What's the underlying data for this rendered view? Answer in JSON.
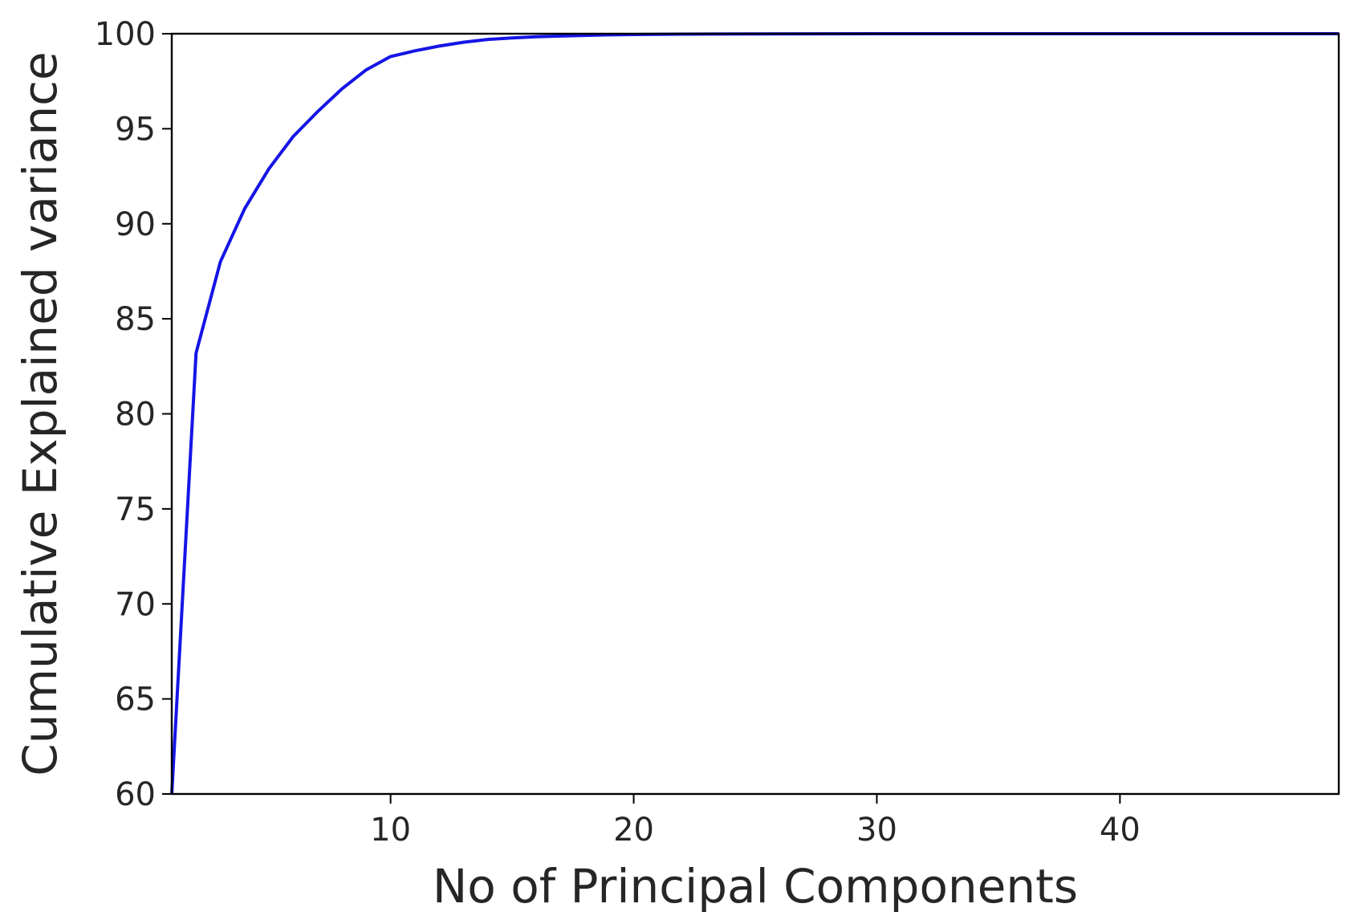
{
  "chart_data": {
    "type": "line",
    "title": "",
    "xlabel": "No of Principal Components",
    "ylabel": "Cumulative Explained variance",
    "xlim": [
      1,
      49
    ],
    "ylim": [
      60,
      100
    ],
    "xticks": [
      10,
      20,
      30,
      40
    ],
    "yticks": [
      60,
      65,
      70,
      75,
      80,
      85,
      90,
      95,
      100
    ],
    "grid": false,
    "legend": "none",
    "series": [
      {
        "color": "#1515e6",
        "x": [
          1,
          2,
          3,
          4,
          5,
          6,
          7,
          8,
          9,
          10,
          11,
          12,
          13,
          14,
          15,
          16,
          17,
          18,
          19,
          20,
          22,
          25,
          30,
          35,
          40,
          45,
          49
        ],
        "values": [
          60.0,
          83.2,
          88.0,
          90.8,
          92.9,
          94.6,
          95.9,
          97.1,
          98.1,
          98.8,
          99.1,
          99.35,
          99.55,
          99.7,
          99.78,
          99.84,
          99.88,
          99.91,
          99.94,
          99.96,
          99.98,
          99.99,
          100.0,
          100.0,
          100.0,
          100.0,
          100.0
        ]
      }
    ]
  }
}
